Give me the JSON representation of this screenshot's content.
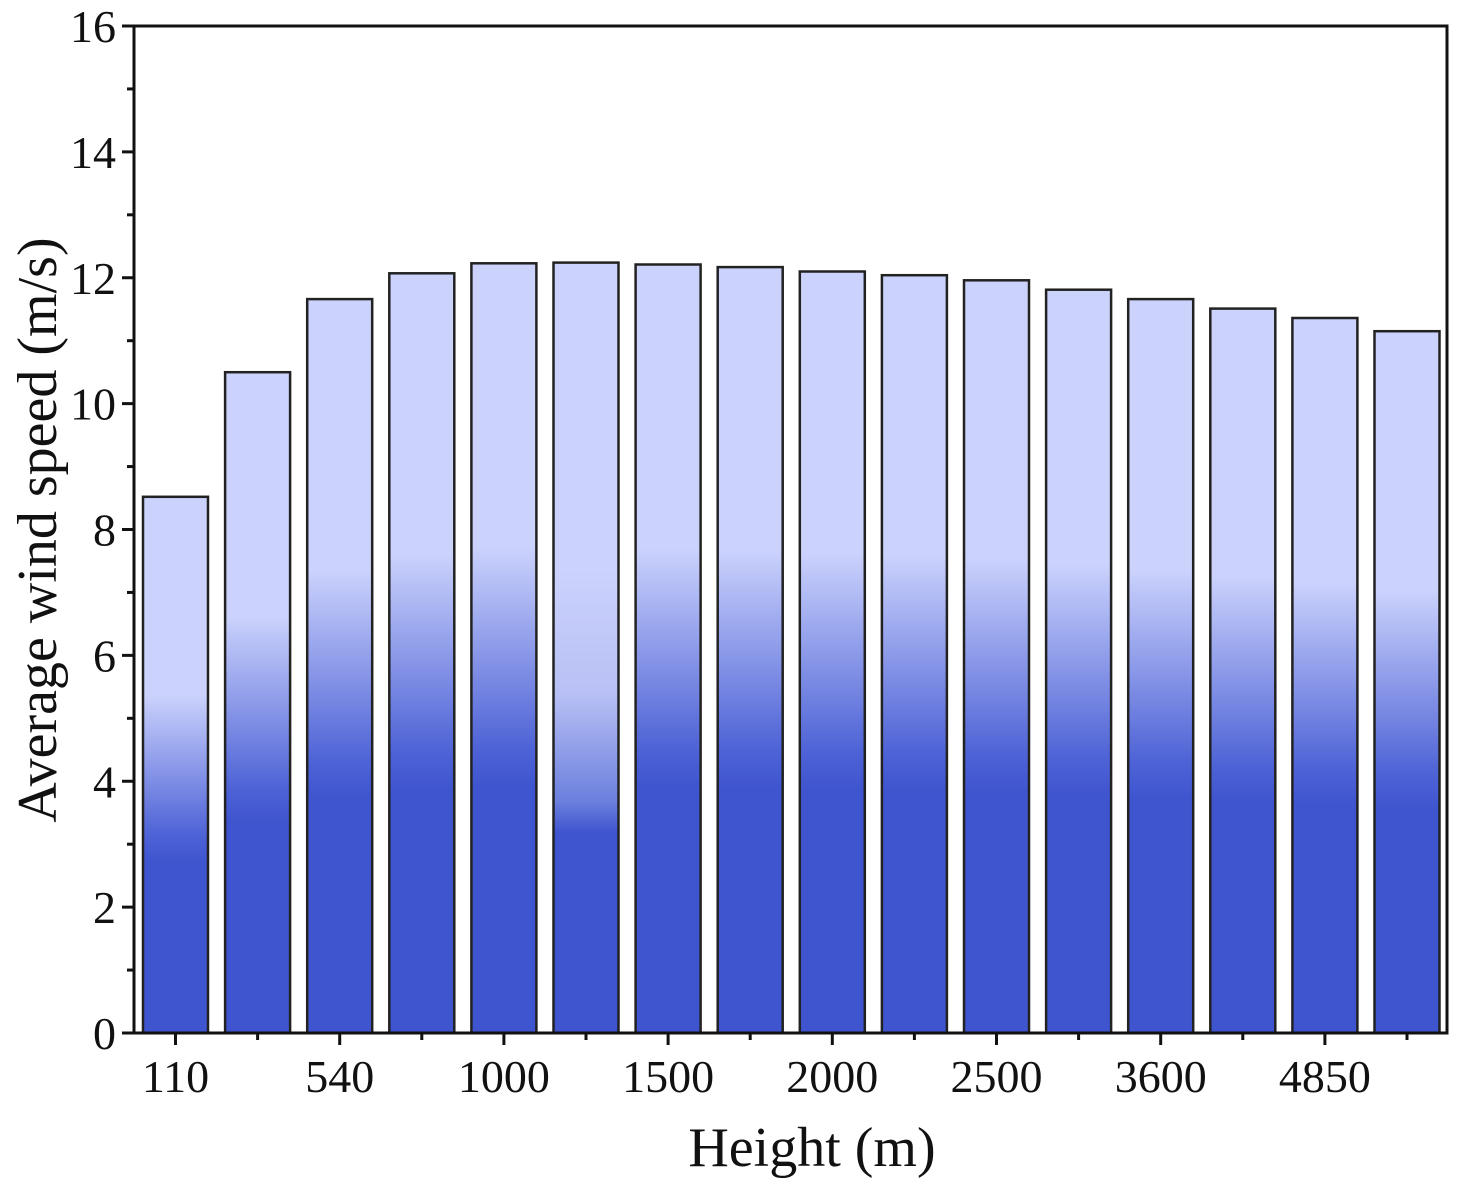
{
  "chart_data": {
    "type": "bar",
    "title": "",
    "xlabel": "Height (m)",
    "ylabel": "Average wind speed (m/s)",
    "ylim": [
      0,
      16
    ],
    "yticks": [
      "0",
      "2",
      "4",
      "6",
      "8",
      "10",
      "12",
      "14",
      "16"
    ],
    "xtick_labels": [
      "110",
      "540",
      "1000",
      "1500",
      "2000",
      "2500",
      "3600",
      "4850"
    ],
    "values": [
      8.52,
      10.5,
      11.66,
      12.07,
      12.23,
      12.24,
      12.21,
      12.17,
      12.1,
      12.04,
      11.96,
      11.81,
      11.66,
      11.51,
      11.36,
      11.15
    ],
    "grid": false,
    "legend": "none",
    "colors": {
      "bar_top": "#cbd2fc",
      "bar_bottom": "#3f55cf",
      "bar_edge": "#222222",
      "axis": "#111111"
    }
  }
}
